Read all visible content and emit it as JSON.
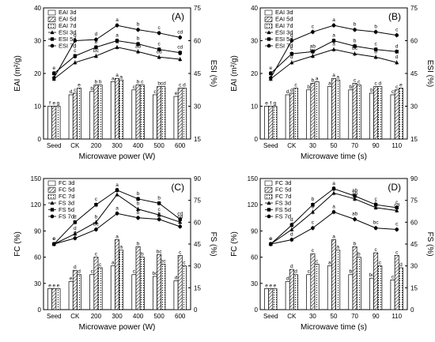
{
  "colors": {
    "ink": "#000000",
    "bar_fill": "#ffffff"
  },
  "chart_data": [
    {
      "type": "bar",
      "panel": "(A)",
      "xlabel": "Microwave power (W)",
      "ylabel": "EAI (m²/g)",
      "ylabel_right": "ESI (%)",
      "categories": [
        "Seed",
        "CK",
        "200",
        "300",
        "400",
        "500",
        "600"
      ],
      "ylim": [
        0,
        40
      ],
      "yticks": [
        0,
        10,
        20,
        30,
        40
      ],
      "ylim_right": [
        15,
        75
      ],
      "yticks_right": [
        15,
        30,
        45,
        60,
        75
      ],
      "legend_position": "top-left",
      "bar_series": [
        {
          "name": "EAI 3d",
          "pattern": "plain",
          "values": [
            10,
            13.5,
            14.5,
            17.5,
            15,
            13.5,
            13
          ],
          "labels": [
            "f",
            "d",
            "b",
            "a",
            "c",
            "c",
            "e"
          ]
        },
        {
          "name": "EAI 5d",
          "pattern": "hatch",
          "values": [
            10,
            14,
            16.5,
            18.5,
            16.5,
            16,
            15.5
          ],
          "labels": [
            "e",
            "c",
            "b",
            "a",
            "b",
            "b",
            "c"
          ]
        },
        {
          "name": "EAI 7d",
          "pattern": "dots",
          "values": [
            10,
            15.5,
            16.5,
            18,
            16.5,
            16,
            15.5
          ],
          "labels": [
            "g",
            "e",
            "b",
            "a",
            "c",
            "cd",
            "d"
          ]
        }
      ],
      "line_series": [
        {
          "name": "ESI 3d",
          "marker": "triangle",
          "values": [
            42.5,
            50,
            53,
            57,
            55,
            52.5,
            51.5
          ],
          "labels": [
            "e",
            "d",
            "bc",
            "a",
            "ab",
            "cd",
            "d"
          ]
        },
        {
          "name": "ESI 5d",
          "marker": "square",
          "values": [
            45,
            53,
            57,
            60,
            58.5,
            56,
            54.5
          ],
          "labels": [
            "e",
            "c",
            "b",
            "a",
            "b",
            "c",
            "cd"
          ]
        },
        {
          "name": "ESI 7d",
          "marker": "circle",
          "values": [
            43,
            60,
            60.5,
            67,
            65,
            63.5,
            61.5
          ],
          "labels": [
            "e",
            "d",
            "d",
            "a",
            "b",
            "c",
            "cd"
          ]
        }
      ]
    },
    {
      "type": "bar",
      "panel": "(B)",
      "xlabel": "Microwave time (s)",
      "ylabel": "EAI (m²/g)",
      "ylabel_right": "ESI (%)",
      "categories": [
        "Seed",
        "CK",
        "30",
        "50",
        "70",
        "90",
        "110"
      ],
      "ylim": [
        0,
        40
      ],
      "yticks": [
        0,
        10,
        20,
        30,
        40
      ],
      "ylim_right": [
        15,
        75
      ],
      "yticks_right": [
        15,
        30,
        45,
        60,
        75
      ],
      "legend_position": "top-left",
      "bar_series": [
        {
          "name": "EAI 3d",
          "pattern": "plain",
          "values": [
            10,
            13.5,
            15,
            16,
            15,
            14,
            13.5
          ],
          "labels": [
            "e",
            "d",
            "b",
            "a",
            "b",
            "b",
            "c"
          ]
        },
        {
          "name": "EAI 5d",
          "pattern": "hatch",
          "values": [
            10,
            14,
            17,
            18.5,
            17,
            16,
            15
          ],
          "labels": [
            "f",
            "d",
            "b",
            "a",
            "c",
            "c",
            "c"
          ]
        },
        {
          "name": "EAI 7d",
          "pattern": "dots",
          "values": [
            10,
            15.5,
            17.5,
            18,
            16.5,
            16,
            15.5
          ],
          "labels": [
            "g",
            "c",
            "a",
            "a",
            "c",
            "d",
            "e"
          ]
        }
      ],
      "line_series": [
        {
          "name": "ESI 3d",
          "marker": "triangle",
          "values": [
            42.5,
            50,
            53,
            56,
            54,
            52.5,
            50
          ],
          "labels": [
            "e",
            "d",
            "bc",
            "a",
            "bc",
            "b",
            "d"
          ]
        },
        {
          "name": "ESI 5d",
          "marker": "square",
          "values": [
            45,
            54,
            55,
            60,
            57.5,
            56,
            55
          ],
          "labels": [
            "e",
            "c",
            "ab",
            "a",
            "b",
            "c",
            "d"
          ]
        },
        {
          "name": "ESI 7d",
          "marker": "circle",
          "values": [
            43,
            60,
            64,
            67,
            65,
            64,
            62.5
          ],
          "labels": [
            "e",
            "d",
            "c",
            "a",
            "b",
            "b",
            "c"
          ]
        }
      ]
    },
    {
      "type": "bar",
      "panel": "(C)",
      "xlabel": "Microwave power (W)",
      "ylabel": "FC (%)",
      "ylabel_right": "FS (%)",
      "categories": [
        "Seed",
        "CK",
        "200",
        "300",
        "400",
        "500",
        "600"
      ],
      "ylim": [
        0,
        150
      ],
      "yticks": [
        0,
        30,
        60,
        90,
        120,
        150
      ],
      "ylim_right": [
        0,
        90
      ],
      "yticks_right": [
        0,
        15,
        30,
        45,
        60,
        75,
        90
      ],
      "legend_position": "top-left",
      "bar_series": [
        {
          "name": "FC 3d",
          "pattern": "plain",
          "values": [
            24,
            32,
            40,
            50,
            40,
            38,
            33
          ],
          "labels": [
            "e",
            "e",
            "c",
            "a",
            "c",
            "bc",
            "d"
          ]
        },
        {
          "name": "FC 5d",
          "pattern": "hatch",
          "values": [
            24,
            45,
            60,
            80,
            72,
            63,
            62
          ],
          "labels": [
            "e",
            "d",
            "c",
            "a",
            "b",
            "bc",
            "c"
          ]
        },
        {
          "name": "FC 7d",
          "pattern": "dots",
          "values": [
            24,
            40,
            48,
            68,
            60,
            52,
            50
          ],
          "labels": [
            "e",
            "d",
            "c",
            "a",
            "b",
            "bc",
            "c"
          ]
        }
      ],
      "line_series": [
        {
          "name": "FS 3d",
          "marker": "triangle",
          "values": [
            45,
            52,
            60,
            79,
            69,
            65,
            60
          ],
          "labels": [
            "e",
            "d",
            "b",
            "a",
            "b",
            "c",
            "cd"
          ]
        },
        {
          "name": "FS 5d",
          "marker": "square",
          "values": [
            45,
            60,
            72,
            82,
            76,
            73,
            62
          ],
          "labels": [
            "e",
            "d",
            "c",
            "a",
            "b",
            "b",
            "cd"
          ]
        },
        {
          "name": "FS 7d",
          "marker": "circle",
          "values": [
            45,
            49,
            55,
            66,
            63,
            62,
            57
          ],
          "labels": [
            "e",
            "d",
            "bc",
            "a",
            "b",
            "b",
            "c"
          ]
        }
      ]
    },
    {
      "type": "bar",
      "panel": "(D)",
      "xlabel": "Microwave time (s)",
      "ylabel": "FC (%)",
      "ylabel_right": "FS (%)",
      "categories": [
        "Seed",
        "CK",
        "30",
        "50",
        "70",
        "90",
        "110"
      ],
      "ylim": [
        0,
        150
      ],
      "yticks": [
        0,
        30,
        60,
        90,
        120,
        150
      ],
      "ylim_right": [
        0,
        90
      ],
      "yticks_right": [
        0,
        15,
        30,
        45,
        60,
        75,
        90
      ],
      "legend_position": "top-left",
      "bar_series": [
        {
          "name": "FC 3d",
          "pattern": "plain",
          "values": [
            24,
            32,
            40,
            50,
            40,
            36,
            34
          ],
          "labels": [
            "e",
            "d",
            "c",
            "a",
            "b",
            "bc",
            "c"
          ]
        },
        {
          "name": "FC 5d",
          "pattern": "hatch",
          "values": [
            24,
            46,
            64,
            80,
            72,
            65,
            62
          ],
          "labels": [
            "e",
            "d",
            "c",
            "a",
            "b",
            "c",
            "c"
          ]
        },
        {
          "name": "FC 7d",
          "pattern": "dots",
          "values": [
            24,
            40,
            52,
            68,
            60,
            50,
            48
          ],
          "labels": [
            "e",
            "d",
            "c",
            "a",
            "b",
            "c",
            "d"
          ]
        }
      ],
      "line_series": [
        {
          "name": "FS 3d",
          "marker": "triangle",
          "values": [
            45,
            55,
            67,
            80,
            76,
            70,
            68
          ],
          "labels": [
            "e",
            "d",
            "b",
            "a",
            "ab",
            "c",
            "cd"
          ]
        },
        {
          "name": "FS 5d",
          "marker": "square",
          "values": [
            45,
            58,
            72,
            83,
            78,
            72,
            70
          ],
          "labels": [
            "e",
            "d",
            "b",
            "a",
            "ab",
            "c",
            "c"
          ]
        },
        {
          "name": "FS 7d",
          "marker": "circle",
          "values": [
            45,
            48,
            56,
            67,
            62,
            56,
            55
          ],
          "labels": [
            "e",
            "d",
            "c",
            "a",
            "ab",
            "bc",
            "c"
          ]
        }
      ]
    }
  ]
}
